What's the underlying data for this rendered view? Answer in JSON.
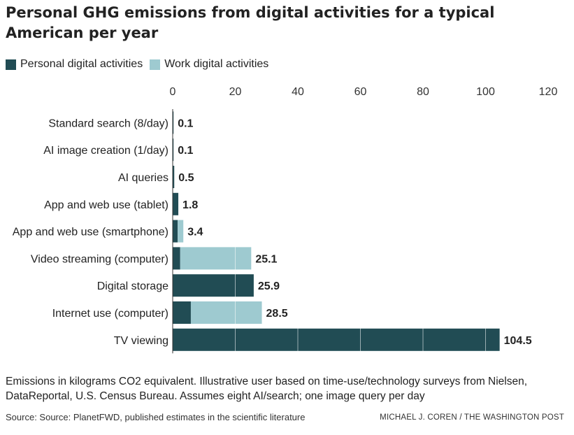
{
  "colors": {
    "personal": "#214c54",
    "work": "#9ecad0",
    "gridline": "#ffffff",
    "axis": "#333333"
  },
  "title": "Personal GHG emissions from digital activities for a typical American per year",
  "legend": {
    "personal_label": "Personal digital activities",
    "work_label": "Work digital activities"
  },
  "note": "Emissions in kilograms CO2 equivalent. Illustrative user based on time-use/technology surveys from Nielsen, DataReportal, U.S. Census Bureau. Assumes eight AI/search; one image query per day",
  "source": "Source: Source: PlanetFWD, published estimates in the scientific literature",
  "credit": "MICHAEL J. COREN / THE WASHINGTON POST",
  "chart_data": {
    "type": "bar",
    "orientation": "horizontal",
    "stacked": true,
    "categories": [
      "Standard search (8/day)",
      "AI image creation (1/day)",
      "AI queries",
      "App and web use (tablet)",
      "App and web use (smartphone)",
      "Video streaming (computer)",
      "Digital storage",
      "Internet use (computer)",
      "TV viewing"
    ],
    "series": [
      {
        "name": "Personal digital activities",
        "values": [
          0.1,
          0.1,
          0.5,
          1.8,
          1.6,
          2.4,
          25.9,
          5.8,
          104.5
        ]
      },
      {
        "name": "Work digital activities",
        "values": [
          0,
          0,
          0,
          0,
          1.8,
          22.7,
          0,
          22.7,
          0
        ]
      }
    ],
    "totals": [
      "0.1",
      "0.1",
      "0.5",
      "1.8",
      "3.4",
      "25.1",
      "25.9",
      "28.5",
      "104.5"
    ],
    "xticks": [
      0,
      20,
      40,
      60,
      80,
      100,
      120
    ],
    "xlim": [
      0,
      120
    ],
    "grid": true,
    "legend_position": "top-left"
  }
}
